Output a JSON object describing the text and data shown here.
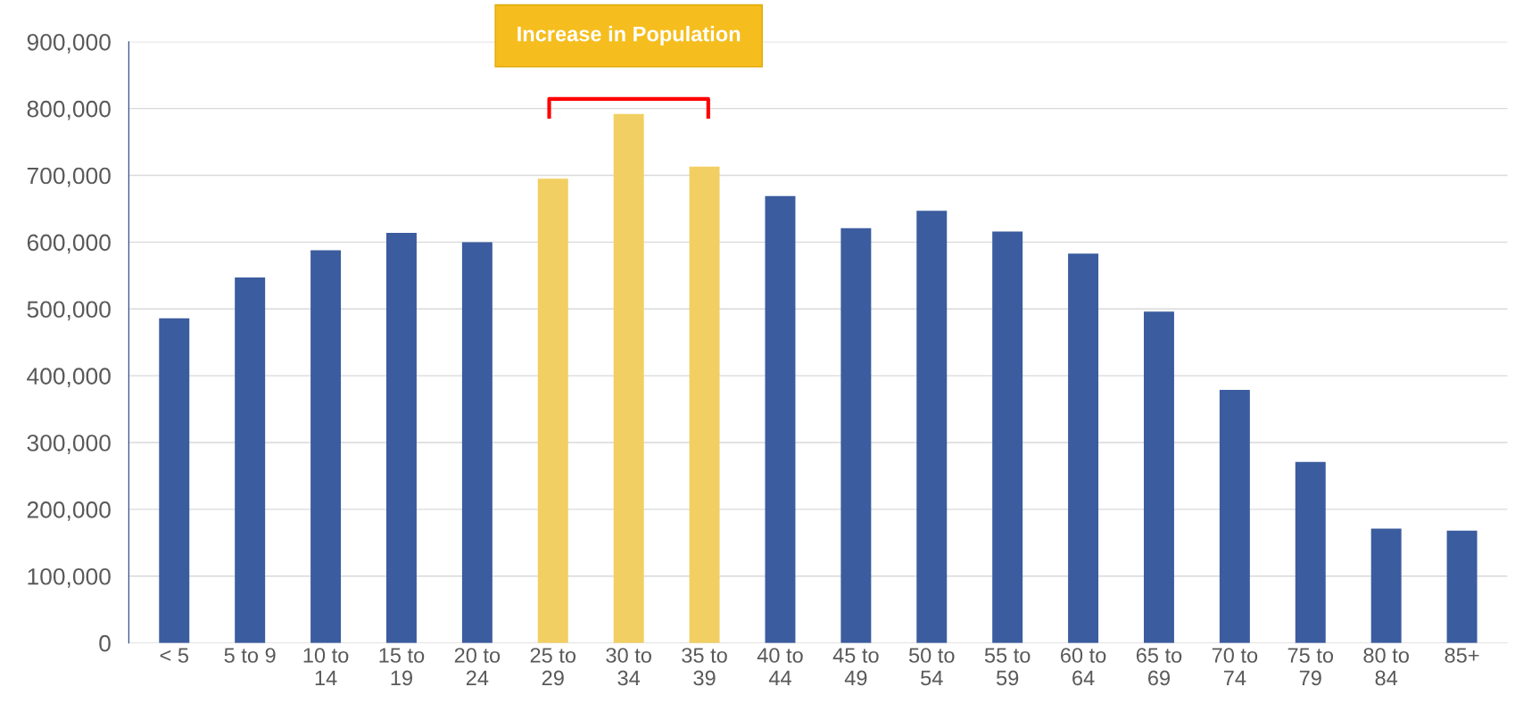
{
  "chart_data": {
    "type": "bar",
    "categories": [
      "< 5",
      "5 to 9",
      "10 to\n14",
      "15 to\n19",
      "20 to\n24",
      "25 to\n29",
      "30 to\n34",
      "35 to\n39",
      "40 to\n44",
      "45 to\n49",
      "50 to\n54",
      "55 to\n59",
      "60 to\n64",
      "65 to\n69",
      "70 to\n74",
      "75 to\n79",
      "80 to\n84",
      "85+"
    ],
    "values": [
      486000,
      547000,
      588000,
      614000,
      600000,
      695000,
      792000,
      713000,
      669000,
      621000,
      647000,
      616000,
      583000,
      496000,
      379000,
      271000,
      171000,
      168000
    ],
    "colors": [
      "#3b5c9e",
      "#3b5c9e",
      "#3b5c9e",
      "#3b5c9e",
      "#3b5c9e",
      "#f2cf62",
      "#f2cf62",
      "#f2cf62",
      "#3b5c9e",
      "#3b5c9e",
      "#3b5c9e",
      "#3b5c9e",
      "#3b5c9e",
      "#3b5c9e",
      "#3b5c9e",
      "#3b5c9e",
      "#3b5c9e",
      "#3b5c9e"
    ],
    "ylim": [
      0,
      900000
    ],
    "yticks": [
      {
        "value": 0,
        "label": "0"
      },
      {
        "value": 100000,
        "label": "100,000"
      },
      {
        "value": 200000,
        "label": "200,000"
      },
      {
        "value": 300000,
        "label": "300,000"
      },
      {
        "value": 400000,
        "label": "400,000"
      },
      {
        "value": 500000,
        "label": "500,000"
      },
      {
        "value": 600000,
        "label": "600,000"
      },
      {
        "value": 700000,
        "label": "700,000"
      },
      {
        "value": 800000,
        "label": "800,000"
      },
      {
        "value": 900000,
        "label": "900,000"
      }
    ],
    "grid": "y",
    "annotations": [
      "Increase in Population"
    ]
  }
}
